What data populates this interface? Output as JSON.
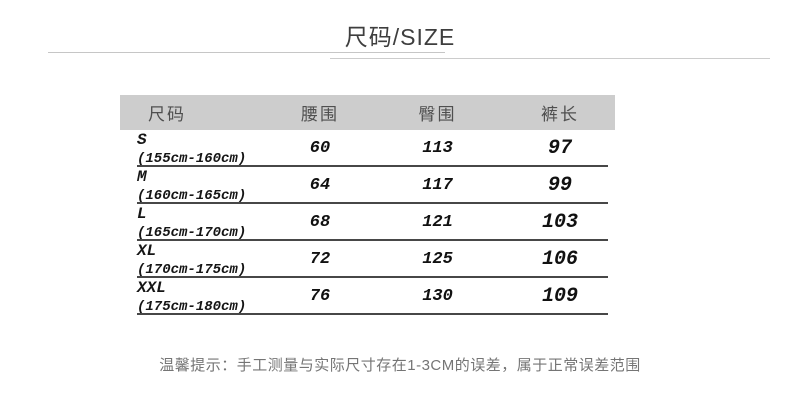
{
  "title": "尺码/SIZE",
  "table": {
    "headers": [
      "尺码",
      "腰围",
      "臀围",
      "裤长"
    ],
    "rows": [
      {
        "size": "S",
        "range": "(155cm-160cm)",
        "waist": "60",
        "hip": "113",
        "length": "97"
      },
      {
        "size": "M",
        "range": "(160cm-165cm)",
        "waist": "64",
        "hip": "117",
        "length": "99"
      },
      {
        "size": "L",
        "range": "(165cm-170cm)",
        "waist": "68",
        "hip": "121",
        "length": "103"
      },
      {
        "size": "XL",
        "range": "(170cm-175cm)",
        "waist": "72",
        "hip": "125",
        "length": "106"
      },
      {
        "size": "XXL",
        "range": "(175cm-180cm)",
        "waist": "76",
        "hip": "130",
        "length": "109"
      }
    ]
  },
  "footer": {
    "note": "温馨提示：手工测量与实际尺寸存在1-3CM的误差，属于正常误差范围"
  },
  "colors": {
    "header_background": "#cdcdcd",
    "row_divider": "#474747",
    "title_text": "#3e3e3e",
    "body_text": "#111111",
    "footer_text": "#757575",
    "title_underline": "#c6c6c6"
  }
}
